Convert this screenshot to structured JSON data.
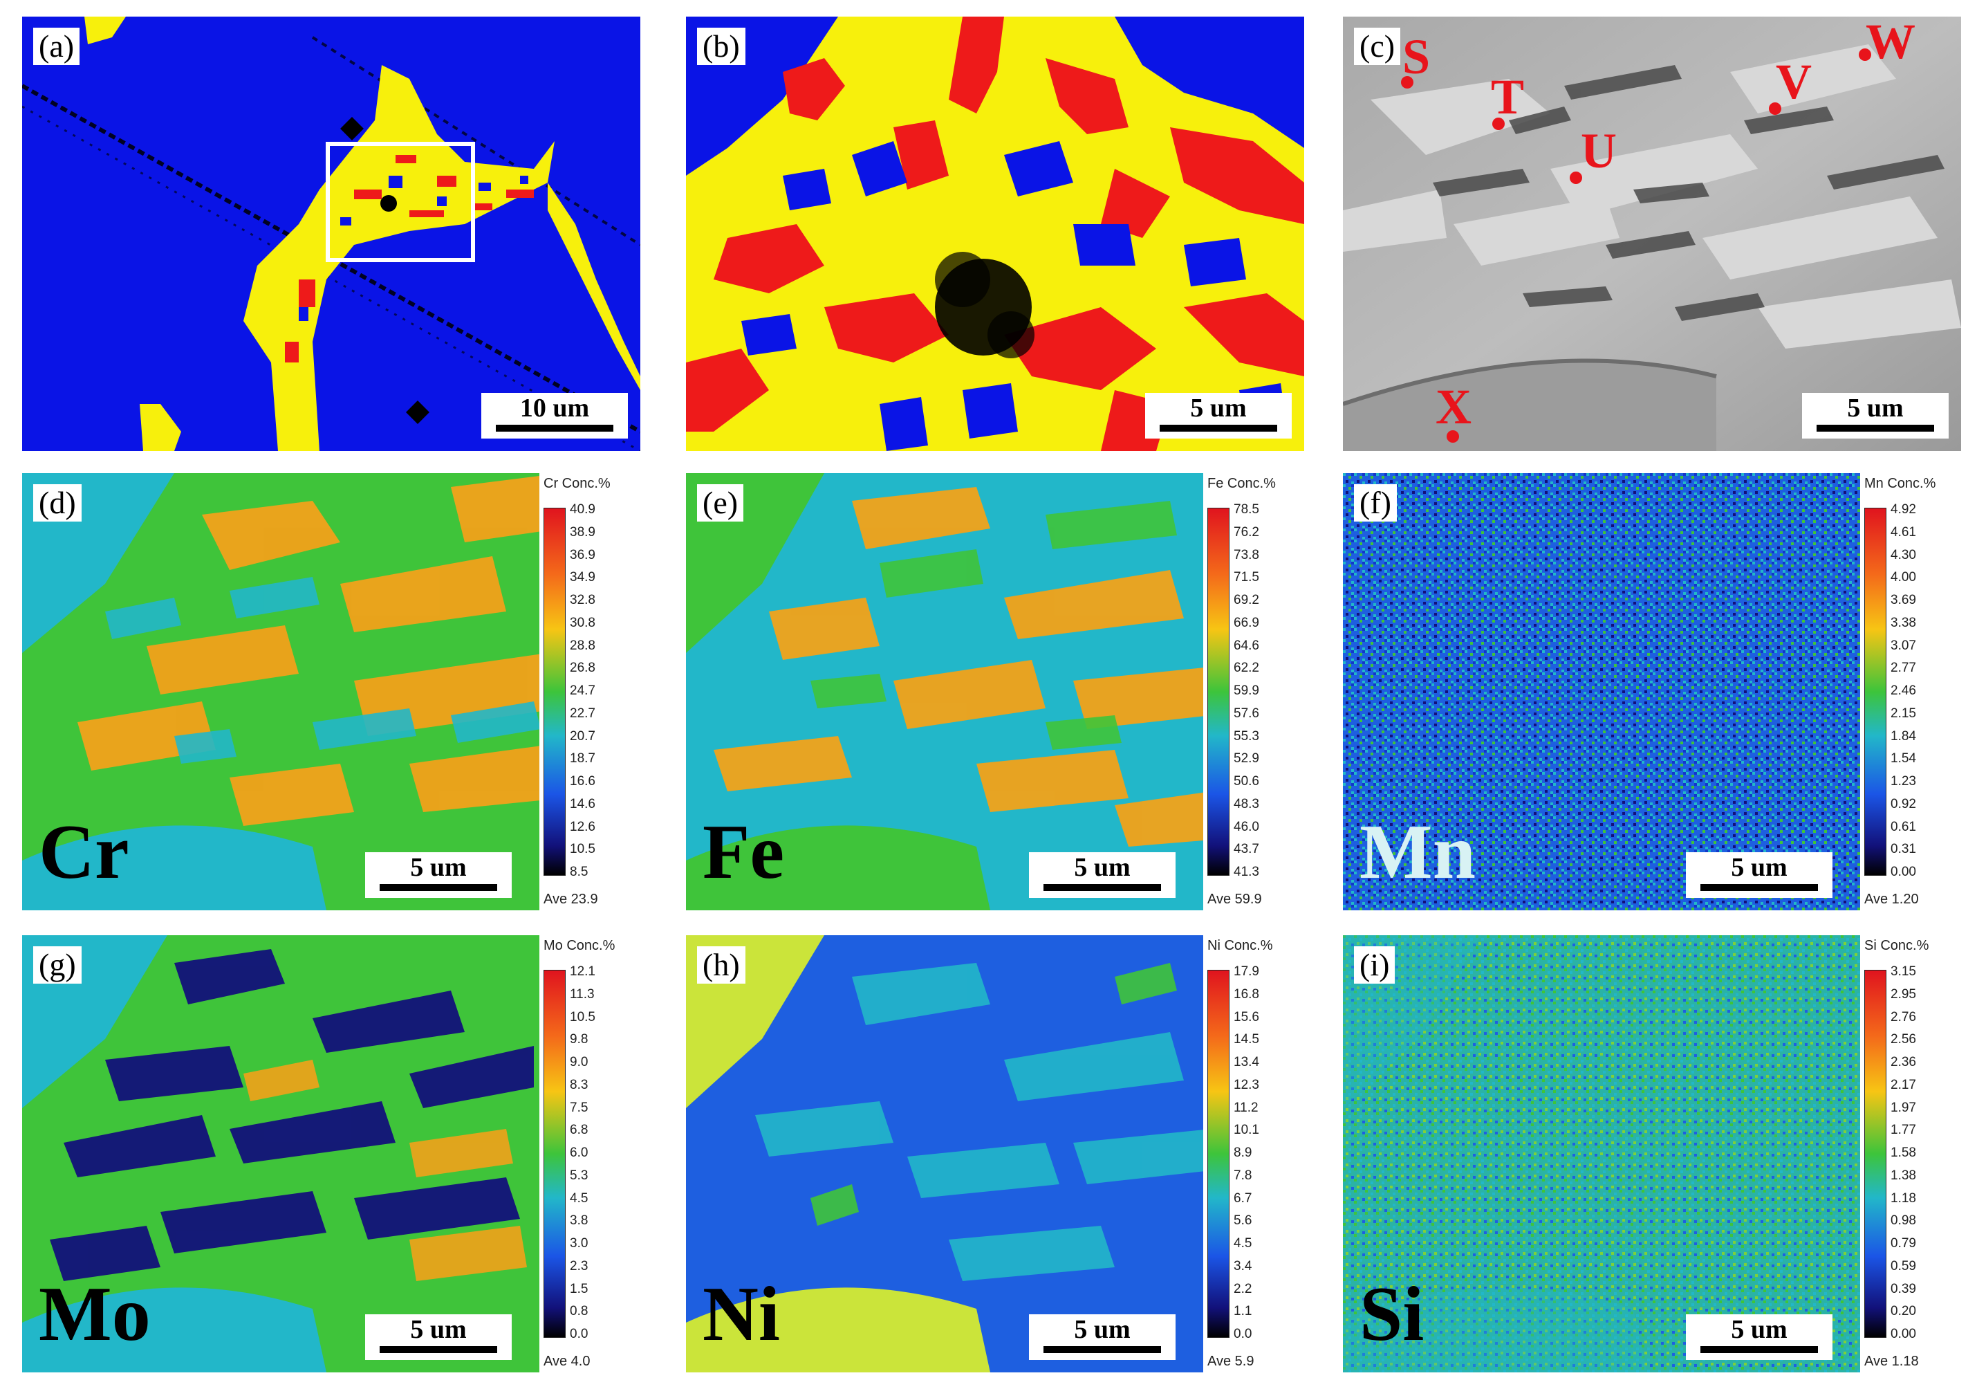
{
  "panels": {
    "a": {
      "label": "(a)",
      "scale_bar": "10 um"
    },
    "b": {
      "label": "(b)",
      "scale_bar": "5 um"
    },
    "c": {
      "label": "(c)",
      "scale_bar": "5 um",
      "points": [
        "S",
        "T",
        "U",
        "V",
        "W",
        "X"
      ]
    },
    "d": {
      "label": "(d)",
      "element": "Cr",
      "scale_bar": "5 um",
      "scale_title": "Cr  Conc.%",
      "ticks": [
        "40.9",
        "38.9",
        "36.9",
        "34.9",
        "32.8",
        "30.8",
        "28.8",
        "26.8",
        "24.7",
        "22.7",
        "20.7",
        "18.7",
        "16.6",
        "14.6",
        "12.6",
        "10.5",
        "8.5"
      ],
      "ave": "Ave 23.9"
    },
    "e": {
      "label": "(e)",
      "element": "Fe",
      "scale_bar": "5 um",
      "scale_title": "Fe  Conc.%",
      "ticks": [
        "78.5",
        "76.2",
        "73.8",
        "71.5",
        "69.2",
        "66.9",
        "64.6",
        "62.2",
        "59.9",
        "57.6",
        "55.3",
        "52.9",
        "50.6",
        "48.3",
        "46.0",
        "43.7",
        "41.3"
      ],
      "ave": "Ave 59.9"
    },
    "f": {
      "label": "(f)",
      "element": "Mn",
      "scale_bar": "5 um",
      "scale_title": "Mn  Conc.%",
      "ticks": [
        "4.92",
        "4.61",
        "4.30",
        "4.00",
        "3.69",
        "3.38",
        "3.07",
        "2.77",
        "2.46",
        "2.15",
        "1.84",
        "1.54",
        "1.23",
        "0.92",
        "0.61",
        "0.31",
        "0.00"
      ],
      "ave": "Ave 1.20"
    },
    "g": {
      "label": "(g)",
      "element": "Mo",
      "scale_bar": "5 um",
      "scale_title": "Mo  Conc.%",
      "ticks": [
        "12.1",
        "11.3",
        "10.5",
        "9.8",
        "9.0",
        "8.3",
        "7.5",
        "6.8",
        "6.0",
        "5.3",
        "4.5",
        "3.8",
        "3.0",
        "2.3",
        "1.5",
        "0.8",
        "0.0"
      ],
      "ave": "Ave 4.0"
    },
    "h": {
      "label": "(h)",
      "element": "Ni",
      "scale_bar": "5 um",
      "scale_title": "Ni  Conc.%",
      "ticks": [
        "17.9",
        "16.8",
        "15.6",
        "14.5",
        "13.4",
        "12.3",
        "11.2",
        "10.1",
        "8.9",
        "7.8",
        "6.7",
        "5.6",
        "4.5",
        "3.4",
        "2.2",
        "1.1",
        "0.0"
      ],
      "ave": "Ave 5.9"
    },
    "i": {
      "label": "(i)",
      "element": "Si",
      "scale_bar": "5 um",
      "scale_title": "Si  Conc.%",
      "ticks": [
        "3.15",
        "2.95",
        "2.76",
        "2.56",
        "2.36",
        "2.17",
        "1.97",
        "1.77",
        "1.58",
        "1.38",
        "1.18",
        "0.98",
        "0.79",
        "0.59",
        "0.39",
        "0.20",
        "0.00"
      ],
      "ave": "Ave 1.18"
    }
  },
  "colors": {
    "phase_blue": "#0a14e6",
    "phase_yellow": "#f7f00c",
    "phase_red": "#ee1a1a",
    "marker_red": "#e8141b"
  }
}
